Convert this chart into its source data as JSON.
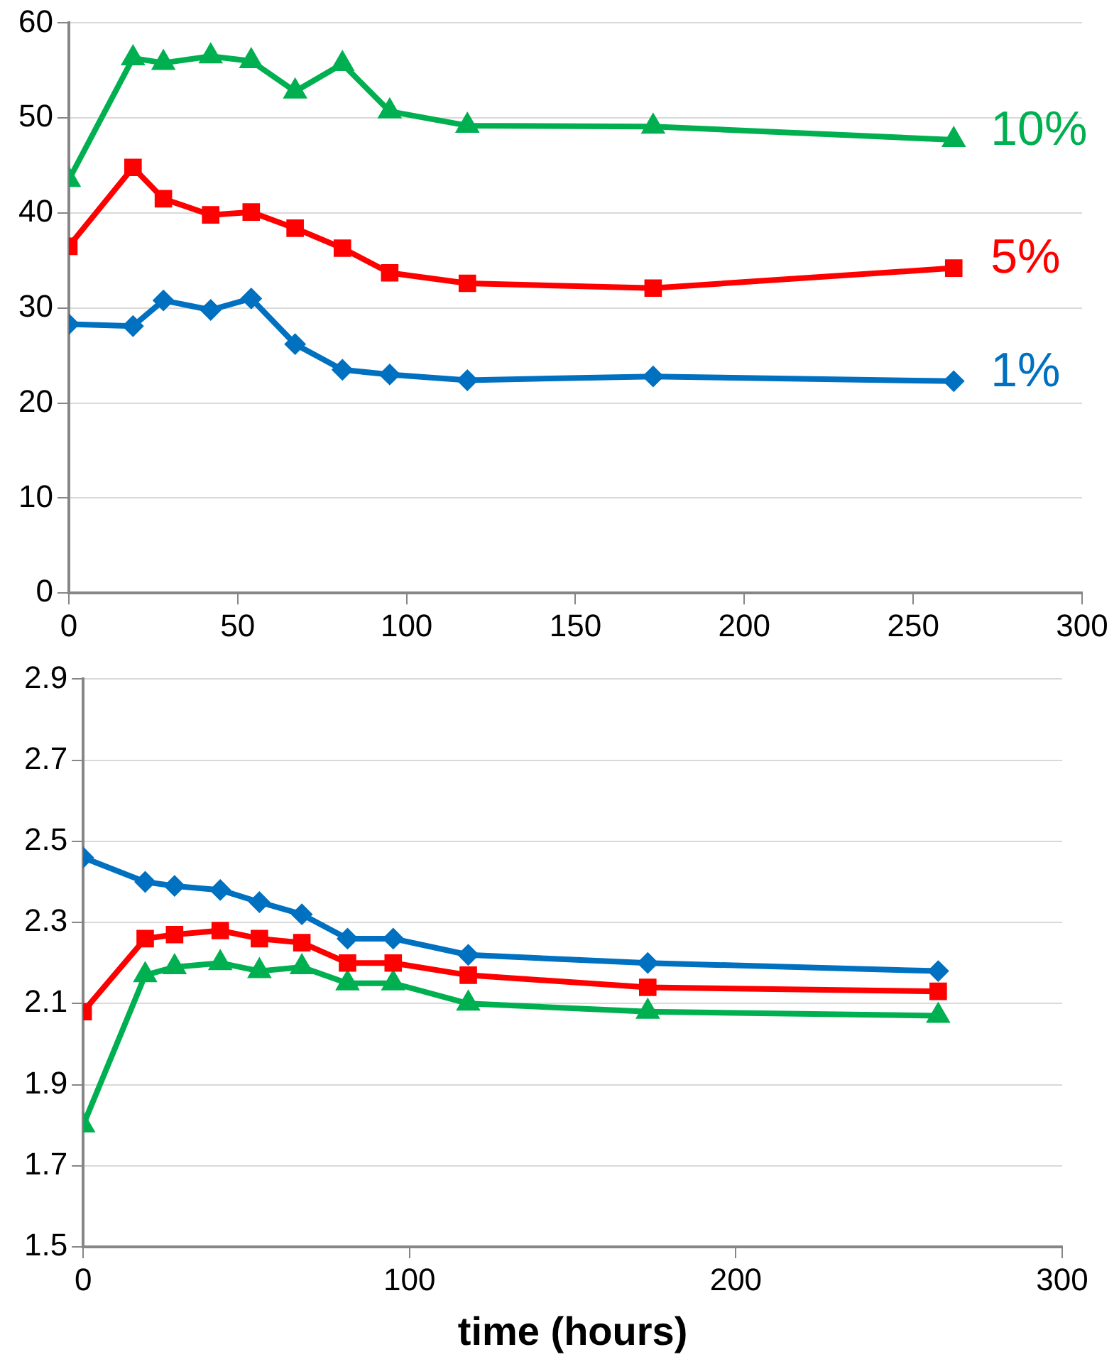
{
  "chart_data": [
    {
      "type": "line",
      "x": [
        0,
        19,
        28,
        42,
        54,
        67,
        81,
        95,
        118,
        173,
        262
      ],
      "xlim": [
        0,
        300
      ],
      "xticks": [
        0,
        50,
        100,
        150,
        200,
        250,
        300
      ],
      "ylim": [
        0,
        60
      ],
      "yticks": [
        0,
        10,
        20,
        30,
        40,
        50,
        60
      ],
      "grid": "y",
      "legend": false,
      "series": [
        {
          "name": "10%",
          "color": "#00b050",
          "marker": "triangle",
          "values": [
            43.5,
            56.3,
            55.8,
            56.5,
            56.0,
            52.8,
            55.7,
            50.7,
            49.2,
            49.1,
            47.7
          ]
        },
        {
          "name": "5%",
          "color": "#ff0000",
          "marker": "square",
          "values": [
            36.5,
            44.8,
            41.5,
            39.8,
            40.1,
            38.4,
            36.3,
            33.7,
            32.6,
            32.1,
            34.2
          ]
        },
        {
          "name": "1%",
          "color": "#0070c0",
          "marker": "diamond",
          "values": [
            28.3,
            28.1,
            30.8,
            29.8,
            31.0,
            26.2,
            23.5,
            23.0,
            22.4,
            22.8,
            22.3
          ]
        }
      ]
    },
    {
      "type": "line",
      "xlabel": "time (hours)",
      "x": [
        0,
        19,
        28,
        42,
        54,
        67,
        81,
        95,
        118,
        173,
        262
      ],
      "xlim": [
        0,
        300
      ],
      "xticks": [
        0,
        100,
        200,
        300
      ],
      "ylim": [
        1.5,
        2.9
      ],
      "yticks": [
        1.5,
        1.7,
        1.9,
        2.1,
        2.3,
        2.5,
        2.7,
        2.9
      ],
      "grid": "y",
      "legend": false,
      "series": [
        {
          "color": "#0070c0",
          "marker": "diamond",
          "values": [
            2.46,
            2.4,
            2.39,
            2.38,
            2.35,
            2.32,
            2.26,
            2.26,
            2.22,
            2.2,
            2.18
          ]
        },
        {
          "color": "#ff0000",
          "marker": "square",
          "values": [
            2.08,
            2.26,
            2.27,
            2.28,
            2.26,
            2.25,
            2.2,
            2.2,
            2.17,
            2.14,
            2.13
          ]
        },
        {
          "color": "#00b050",
          "marker": "triangle",
          "values": [
            1.8,
            2.17,
            2.19,
            2.2,
            2.18,
            2.19,
            2.15,
            2.15,
            2.1,
            2.08,
            2.07
          ]
        }
      ]
    }
  ]
}
